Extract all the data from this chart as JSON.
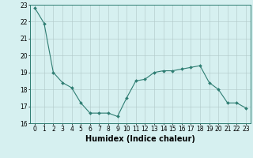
{
  "x": [
    0,
    1,
    2,
    3,
    4,
    5,
    6,
    7,
    8,
    9,
    10,
    11,
    12,
    13,
    14,
    15,
    16,
    17,
    18,
    19,
    20,
    21,
    22,
    23
  ],
  "y": [
    22.8,
    21.9,
    19.0,
    18.4,
    18.1,
    17.2,
    16.6,
    16.6,
    16.6,
    16.4,
    17.5,
    18.5,
    18.6,
    19.0,
    19.1,
    19.1,
    19.2,
    19.3,
    19.4,
    18.4,
    18.0,
    17.2,
    17.2,
    16.9
  ],
  "line_color": "#2e7d72",
  "marker_color": "#2e7d72",
  "bg_color": "#d6f0f0",
  "grid_color": "#b0c8c8",
  "xlabel": "Humidex (Indice chaleur)",
  "ylim": [
    16,
    23
  ],
  "xlim": [
    -0.5,
    23.5
  ],
  "yticks": [
    16,
    17,
    18,
    19,
    20,
    21,
    22,
    23
  ],
  "xticks": [
    0,
    1,
    2,
    3,
    4,
    5,
    6,
    7,
    8,
    9,
    10,
    11,
    12,
    13,
    14,
    15,
    16,
    17,
    18,
    19,
    20,
    21,
    22,
    23
  ],
  "tick_fontsize": 5.5,
  "xlabel_fontsize": 7.0,
  "linewidth": 0.8,
  "markersize": 2.0
}
